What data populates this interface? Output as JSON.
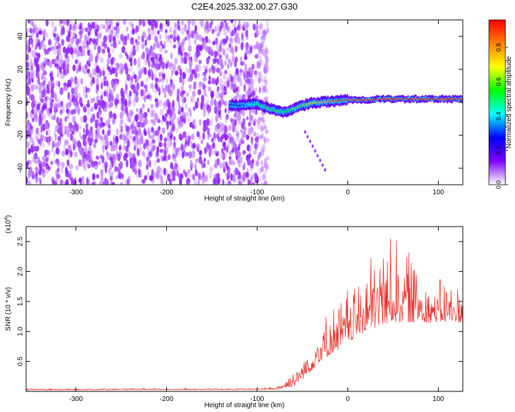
{
  "figure_title": "C2E4.2025.332.00.27.G30",
  "chart_data": [
    {
      "type": "heatmap",
      "xlabel": "Height of straight line (km)",
      "ylabel": "Frequency (Hz)",
      "xlim": [
        -355,
        127
      ],
      "ylim": [
        -50,
        50
      ],
      "x_ticks": [
        -300,
        -200,
        -100,
        0,
        100
      ],
      "x_tick_labels": [
        "-300",
        "-200",
        "-100",
        "0",
        "100"
      ],
      "y_ticks": [
        -40,
        -20,
        0,
        20,
        40
      ],
      "y_tick_labels": [
        "-40",
        "-20",
        "0",
        "20",
        "40"
      ],
      "colorbar": {
        "label": "Normalized spectral amplitude",
        "range": [
          0.0,
          0.96
        ],
        "ticks": [
          0.0,
          0.2,
          0.4,
          0.6,
          0.8
        ],
        "tick_labels": [
          "0.0",
          "0.2",
          "0.4",
          "0.6",
          "0.8"
        ],
        "colormap": [
          "#ffffff",
          "#8000ff",
          "#0000ff",
          "#00ffff",
          "#00ff00",
          "#ffff00",
          "#ff8000",
          "#ff0000"
        ]
      },
      "features": {
        "noise_region_x": [
          -355,
          -100
        ],
        "noise_amplitude": 0.1,
        "signal_track": {
          "x": [
            -130,
            -120,
            -110,
            -100,
            -90,
            -80,
            -70,
            -60,
            -50,
            -40,
            -30,
            -20,
            -10,
            0,
            20,
            40,
            60,
            80,
            100,
            127
          ],
          "freq": [
            -1.5,
            -2,
            -1.5,
            -1,
            -3,
            -5,
            -6,
            -4,
            -2,
            -0.5,
            0,
            0.5,
            1,
            1.5,
            1.5,
            2,
            2,
            2,
            2,
            2
          ],
          "amplitude": [
            0.25,
            0.25,
            0.4,
            0.5,
            0.45,
            0.55,
            0.5,
            0.6,
            0.6,
            0.7,
            0.75,
            0.8,
            0.85,
            0.85,
            0.9,
            0.9,
            0.9,
            0.9,
            0.9,
            0.9
          ]
        },
        "secondary_trace": {
          "x": [
            -47,
            -25
          ],
          "freq": [
            -18,
            -41
          ],
          "amplitude": 0.15
        }
      }
    },
    {
      "type": "line",
      "xlabel": "Height of straight line (km)",
      "ylabel": "SNR (10 * v/v)",
      "y_multiplier_label": "(x10",
      "y_multiplier_exponent": "4",
      "xlim": [
        -355,
        127
      ],
      "ylim": [
        0,
        2.75
      ],
      "x_ticks": [
        -300,
        -200,
        -100,
        0,
        100
      ],
      "x_tick_labels": [
        "-300",
        "-200",
        "-100",
        "0",
        "100"
      ],
      "y_ticks": [
        0.5,
        1.0,
        1.5,
        2.0,
        2.5
      ],
      "y_tick_labels": [
        "0.5",
        "1.0",
        "1.5",
        "2.0",
        "2.5"
      ],
      "color": "#e8302a",
      "series": [
        {
          "envelope_x": [
            -355,
            -100,
            -80,
            -60,
            -50,
            -40,
            -30,
            -20,
            -10,
            0,
            10,
            20,
            30,
            40,
            50,
            60,
            70,
            80,
            90,
            100,
            110,
            127
          ],
          "envelope_base": [
            0.02,
            0.03,
            0.03,
            0.08,
            0.2,
            0.35,
            0.5,
            0.6,
            0.7,
            0.8,
            0.9,
            1.0,
            1.05,
            1.1,
            1.15,
            1.15,
            1.15,
            1.15,
            1.15,
            1.15,
            1.15,
            1.15
          ],
          "envelope_peak": [
            0.05,
            0.05,
            0.08,
            0.35,
            0.65,
            0.8,
            1.2,
            1.4,
            1.5,
            1.75,
            1.95,
            2.2,
            2.4,
            2.5,
            2.6,
            2.45,
            2.3,
            2.2,
            2.0,
            1.9,
            1.8,
            1.75
          ]
        }
      ]
    }
  ]
}
